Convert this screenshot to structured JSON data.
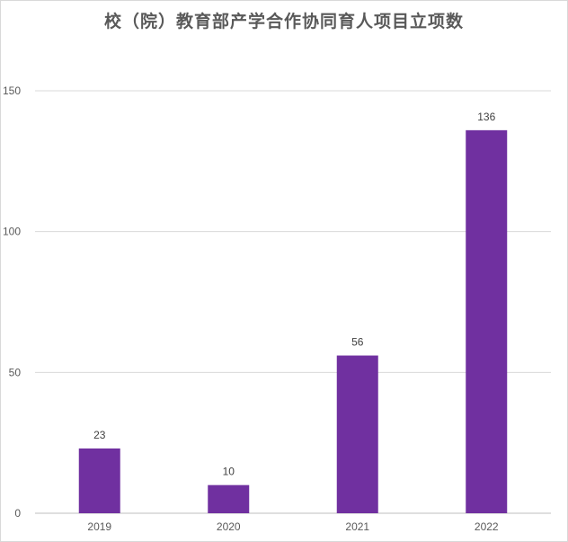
{
  "chart_data": {
    "type": "bar",
    "title": "校（院）教育部产学合作协同育人项目立项数",
    "categories": [
      "2019",
      "2020",
      "2021",
      "2022"
    ],
    "values": [
      23,
      10,
      56,
      136
    ],
    "data_labels": [
      "23",
      "10",
      "56",
      "136"
    ],
    "xlabel": "",
    "ylabel": "",
    "ylim": [
      0,
      150
    ],
    "yticks": [
      0,
      50,
      100,
      150
    ],
    "ytick_labels": [
      "0",
      "50",
      "100",
      "150"
    ],
    "grid": true,
    "legend": "none",
    "colors": {
      "bar": "#7030a0",
      "grid": "#d9d9d9",
      "axis": "#bfbfbf",
      "text": "#595959"
    }
  }
}
